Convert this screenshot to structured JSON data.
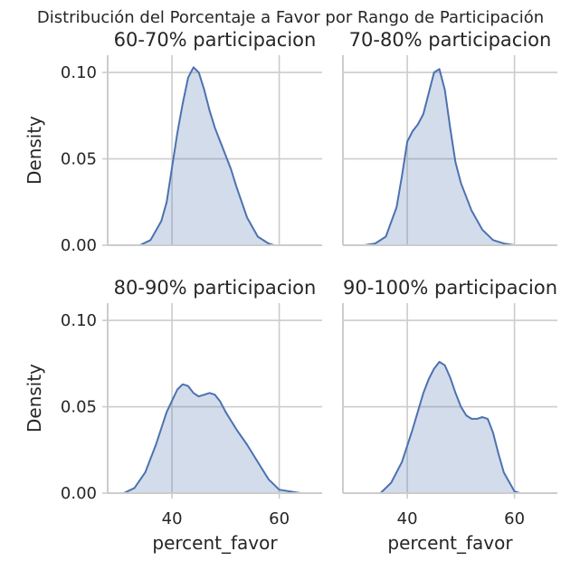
{
  "chart_data": {
    "type": "area",
    "title": "Distribución del Porcentaje a Favor por Rango de Participación",
    "xlabel": "percent_favor",
    "ylabel": "Density",
    "xlim": [
      28,
      68
    ],
    "ylim": [
      0,
      0.11
    ],
    "xticks": [
      40,
      60
    ],
    "yticks": [
      0.0,
      0.05,
      0.1
    ],
    "ytick_labels": [
      "0.00",
      "0.05",
      "0.10"
    ],
    "grid": true,
    "line_color": "#4c72b0",
    "fill_color": "#4c72b0",
    "facets": [
      {
        "title": "60-70% participacion",
        "x": [
          34,
          36,
          38,
          39,
          40,
          41,
          42,
          43,
          44,
          45,
          46,
          47,
          48,
          49,
          50,
          51,
          52,
          54,
          56,
          58,
          59
        ],
        "y": [
          0.0,
          0.003,
          0.014,
          0.025,
          0.045,
          0.065,
          0.082,
          0.097,
          0.103,
          0.1,
          0.09,
          0.078,
          0.068,
          0.06,
          0.052,
          0.044,
          0.034,
          0.016,
          0.005,
          0.001,
          0.0
        ]
      },
      {
        "title": "70-80% participacion",
        "x": [
          32,
          34,
          36,
          38,
          39,
          40,
          41,
          42,
          43,
          44,
          45,
          46,
          47,
          48,
          49,
          50,
          52,
          54,
          56,
          58,
          60
        ],
        "y": [
          0.0,
          0.001,
          0.005,
          0.022,
          0.04,
          0.06,
          0.066,
          0.07,
          0.076,
          0.088,
          0.1,
          0.102,
          0.09,
          0.068,
          0.048,
          0.036,
          0.02,
          0.009,
          0.003,
          0.001,
          0.0
        ]
      },
      {
        "title": "80-90% participacion",
        "x": [
          31,
          33,
          35,
          37,
          39,
          41,
          42,
          43,
          44,
          45,
          46,
          47,
          48,
          49,
          50,
          52,
          54,
          56,
          58,
          60,
          62,
          64
        ],
        "y": [
          0.0,
          0.003,
          0.012,
          0.028,
          0.047,
          0.06,
          0.063,
          0.062,
          0.058,
          0.056,
          0.057,
          0.058,
          0.057,
          0.053,
          0.047,
          0.037,
          0.028,
          0.018,
          0.008,
          0.002,
          0.001,
          0.0
        ]
      },
      {
        "title": "90-100% participacion",
        "x": [
          35,
          37,
          39,
          41,
          43,
          44,
          45,
          46,
          47,
          48,
          49,
          50,
          51,
          52,
          53,
          54,
          55,
          56,
          57,
          58,
          60,
          61
        ],
        "y": [
          0.0,
          0.006,
          0.018,
          0.037,
          0.058,
          0.066,
          0.072,
          0.076,
          0.074,
          0.067,
          0.058,
          0.05,
          0.045,
          0.043,
          0.043,
          0.044,
          0.043,
          0.035,
          0.023,
          0.012,
          0.001,
          0.0
        ]
      }
    ]
  }
}
